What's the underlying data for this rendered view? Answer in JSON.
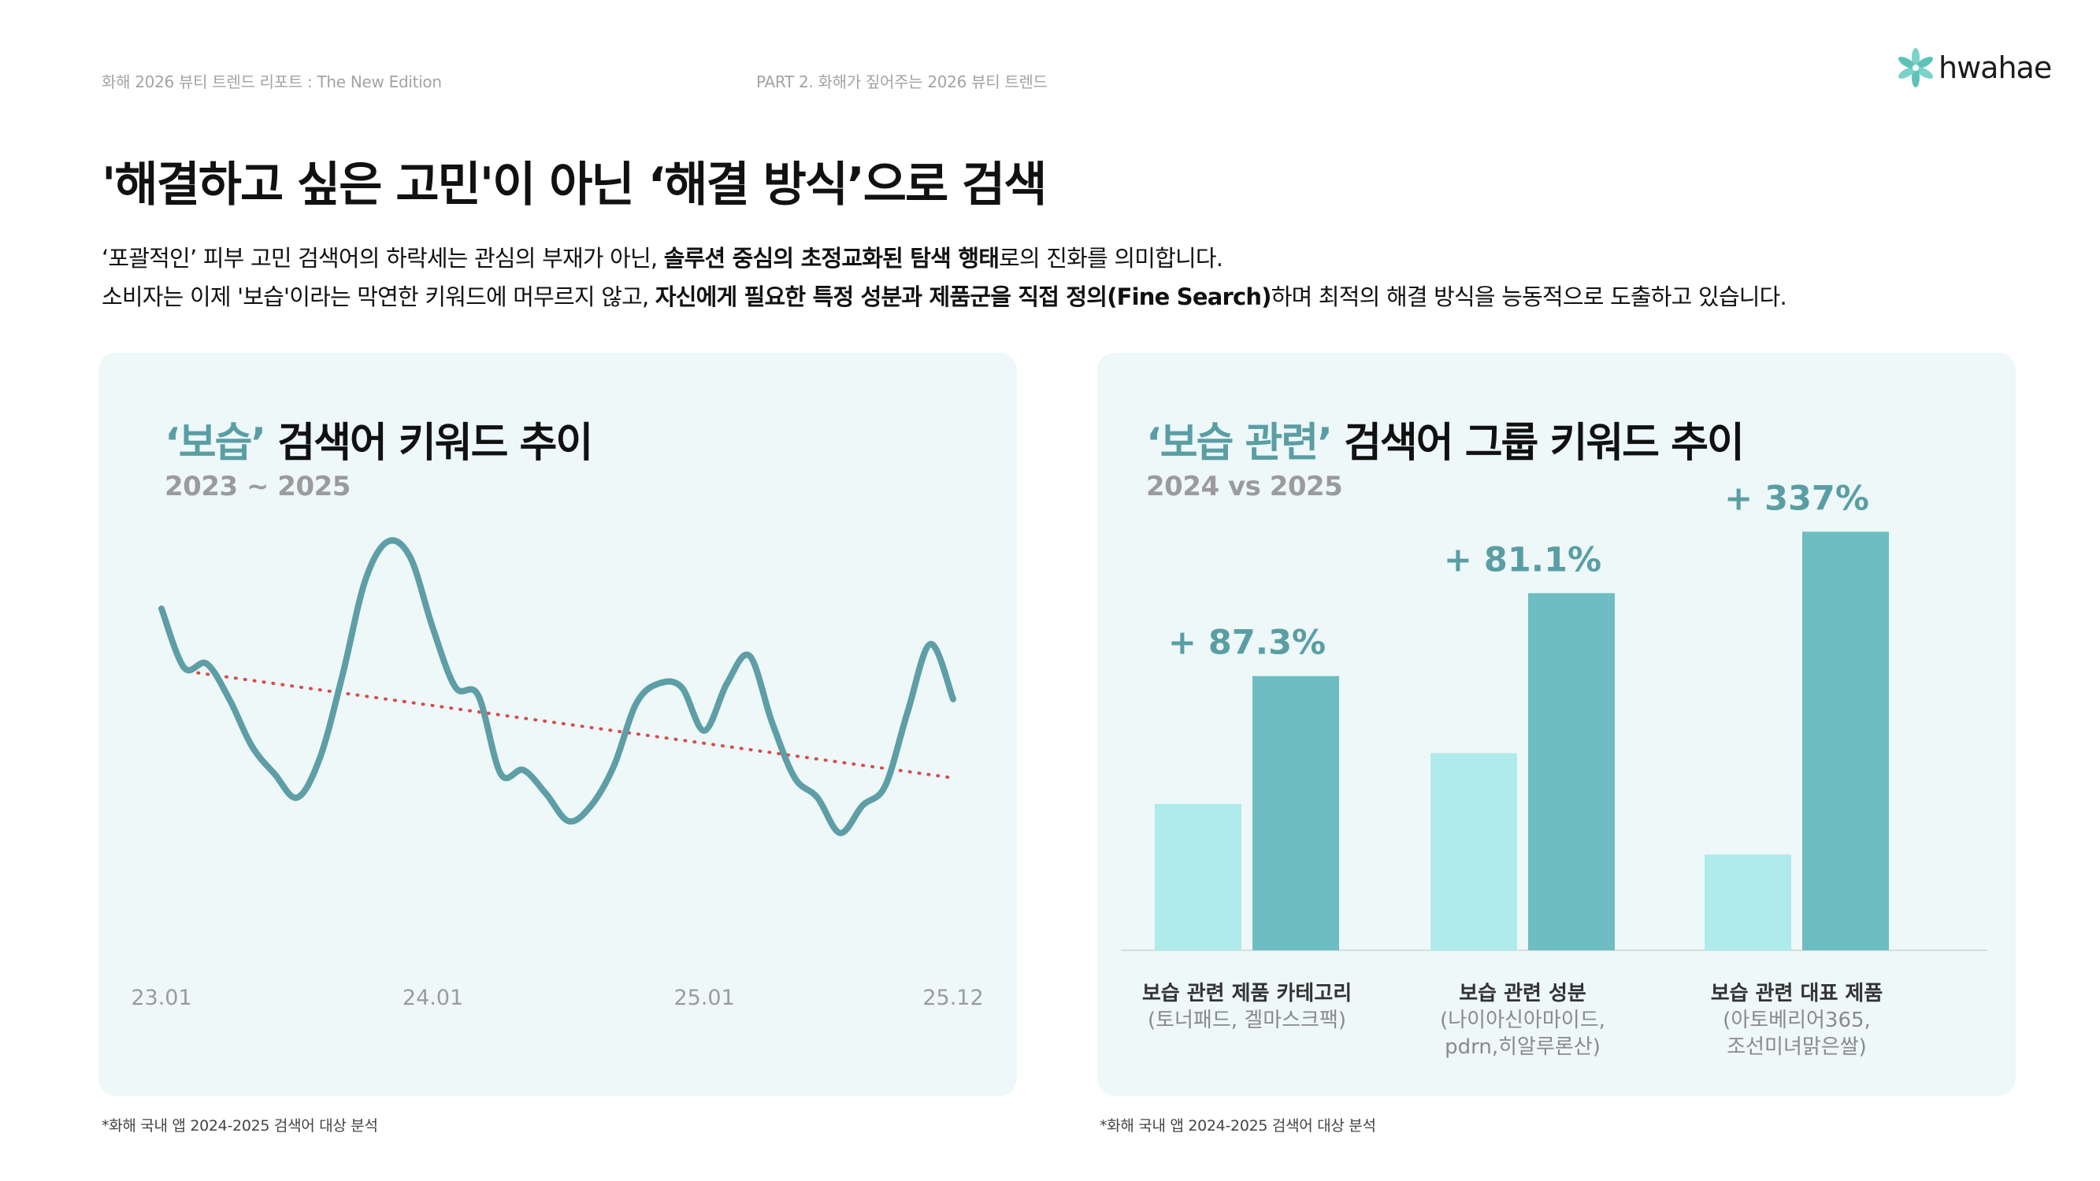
{
  "header": {
    "report_title": "화해 2026 뷰티 트렌드 리포트 : The New Edition",
    "section": "PART 2. 화해가 짚어주는 2026 뷰티 트렌드",
    "logo_text": "hwahae"
  },
  "page": {
    "title": "'해결하고 싶은 고민'이 아닌 ‘해결 방식’으로 검색",
    "intro_1": {
      "a": "‘포괄적인’ 피부 고민 검색어의 하락세는 관심의 부재가 아닌, ",
      "b": "솔루션 중심의 초정교화된 탐색 행태",
      "c": "로의 진화를 의미합니다."
    },
    "intro_2": {
      "a": "소비자는 이제 '보습'이라는 막연한 키워드에 머무르지 않고, ",
      "b": "자신에게 필요한 특정 성분과 제품군을 직접 정의(Fine Search)",
      "c": "하며 최적의 해결 방식을 능동적으로 도출하고 있습니다."
    }
  },
  "left_card": {
    "title_accent": "‘보습’",
    "title_rest": " 검색어 키워드 추이",
    "subtitle": "2023 ~ 2025",
    "footnote": "*화해 국내 앱 2024-2025 검색어 대상 분석"
  },
  "right_card": {
    "title_accent": "‘보습 관련’",
    "title_rest": " 검색어 그룹 키워드 추이",
    "subtitle": "2024 vs 2025",
    "footnote": "*화해 국내 앱 2024-2025 검색어 대상 분석"
  },
  "chart_data": [
    {
      "type": "line",
      "title": "‘보습’ 검색어 키워드 추이",
      "subtitle": "2023 ~ 2025",
      "x_tick_labels": [
        "23.01",
        "24.01",
        "25.01",
        "25.12"
      ],
      "x_tick_index": [
        0,
        12,
        24,
        35
      ],
      "series": [
        {
          "values": [
            61,
            46,
            47,
            38,
            26,
            19,
            13,
            23,
            44,
            68,
            78,
            74,
            56,
            41,
            39,
            19,
            20,
            14,
            7,
            11,
            21,
            37,
            42,
            41,
            30,
            42,
            49,
            32,
            18,
            13,
            4,
            11,
            16,
            35,
            52,
            38
          ],
          "color": "#5e9ea6"
        }
      ],
      "trendline": {
        "start": 45,
        "end": 18,
        "color": "#d94a4a",
        "style": "dotted"
      },
      "ylim": [
        0,
        86
      ],
      "grid": false
    },
    {
      "type": "bar",
      "title": "‘보습 관련’ 검색어 그룹 키워드 추이",
      "subtitle": "2024 vs 2025",
      "categories": [
        [
          "보습 관련 제품 카테고리",
          "(토너패드, 겔마스크팩)"
        ],
        [
          "보습 관련 성분",
          "(나이아신아마이드,",
          "pdrn,히알루론산)"
        ],
        [
          "보습 관련 대표 제품",
          "(아토베리어365,",
          "조선미녀맑은쌀)"
        ]
      ],
      "series": [
        {
          "values": [
            86.5,
            116.5,
            56.6
          ],
          "color": "#b0ebeb"
        },
        {
          "values": [
            162,
            211,
            247.3
          ],
          "color": "#6ebdc2"
        }
      ],
      "data_labels": [
        "+ 87.3%",
        "+ 81.1%",
        "+ 337%"
      ],
      "label_color": "#5a9ea4",
      "ylim": [
        0,
        260
      ],
      "grid": false,
      "legend": "none"
    }
  ]
}
